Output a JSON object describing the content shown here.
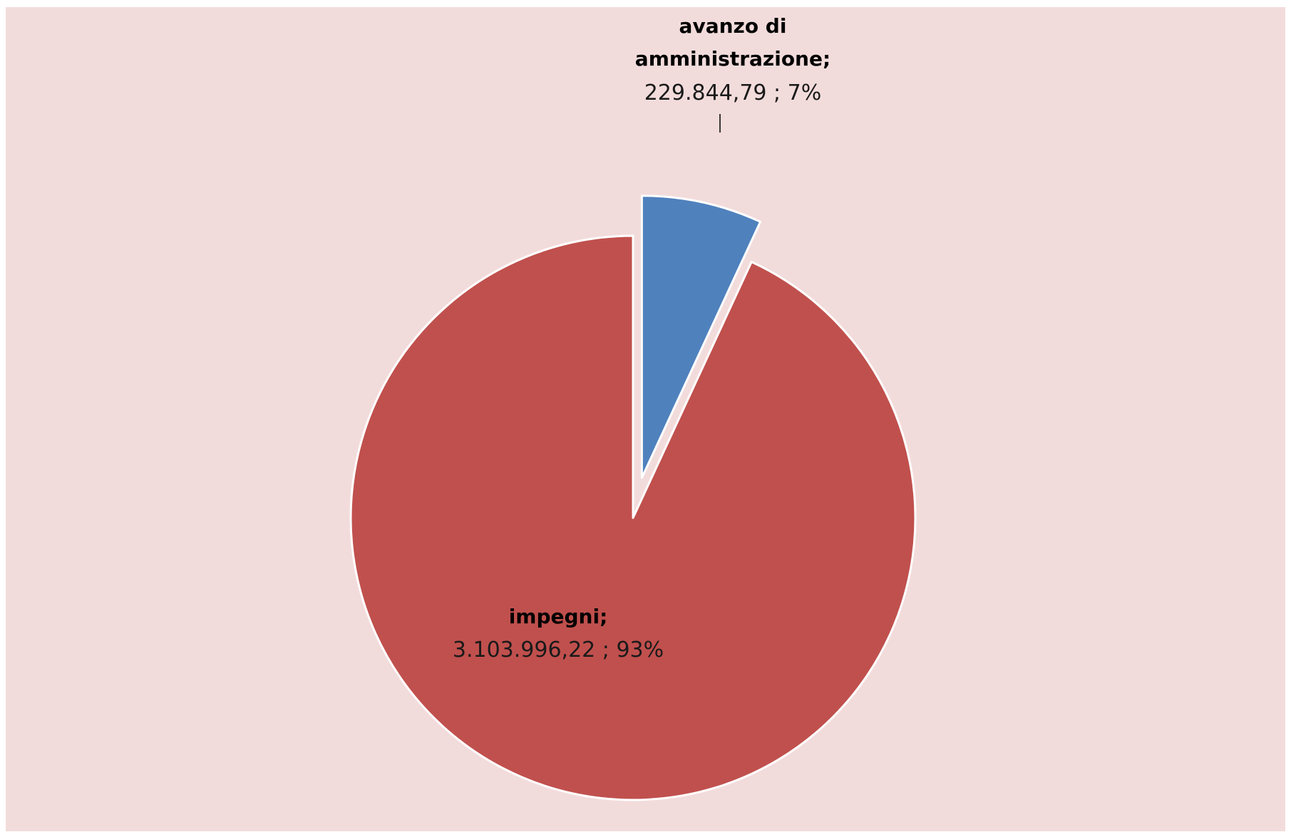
{
  "chart_data": {
    "type": "pie",
    "slices": [
      {
        "name": "avanzo di amministrazione",
        "label_name_lines": [
          "avanzo di",
          "amministrazione;"
        ],
        "value": 229844.79,
        "value_text": "229.844,79",
        "percent_text": "7%",
        "label_value_line": "229.844,79 ; 7%",
        "color": "#4f81bd",
        "exploded": true
      },
      {
        "name": "impegni",
        "label_name_lines": [
          "impegni;"
        ],
        "value": 3103996.22,
        "value_text": "3.103.996,22",
        "percent_text": "93%",
        "label_value_line": "3.103.996,22 ; 93%",
        "color": "#c0504d",
        "exploded": false
      }
    ],
    "start_angle_deg": 0,
    "direction": "clockwise",
    "background_color": "#f2dcdb",
    "legend": "none"
  }
}
